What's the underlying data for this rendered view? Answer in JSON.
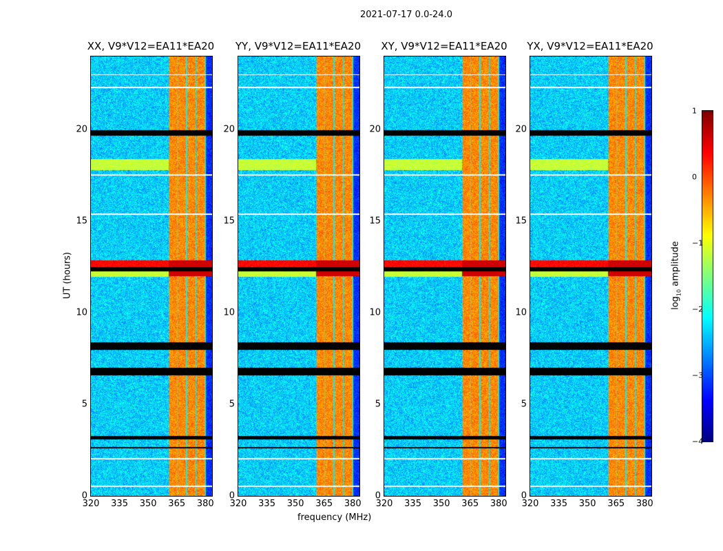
{
  "chart_data": {
    "type": "heatmap",
    "title": "2021-07-17 0.0-24.0",
    "xlabel": "frequency (MHz)",
    "ylabel": "UT (hours)",
    "xlim": [
      320,
      383.5
    ],
    "ylim": [
      0,
      24
    ],
    "xticks": [
      "320",
      "335",
      "350",
      "365",
      "380"
    ],
    "yticks": [
      "0",
      "5",
      "10",
      "15",
      "20"
    ],
    "panels": [
      {
        "title": "XX, V9*V12=EA11*EA20"
      },
      {
        "title": "YY, V9*V12=EA11*EA20"
      },
      {
        "title": "XY, V9*V12=EA11*EA20"
      },
      {
        "title": "YX, V9*V12=EA11*EA20"
      }
    ],
    "colorbar": {
      "label": "log10 amplitude",
      "label_base": "log",
      "label_sub": "10",
      "label_rest": " amplitude",
      "range": [
        -4,
        1
      ],
      "ticks": [
        "1",
        "0",
        "−1",
        "−2",
        "−3",
        "−4"
      ],
      "colormap": "jet"
    },
    "features": {
      "background_log_amp": -2.8,
      "strong_band_mhz": [
        360.5,
        380
      ],
      "strong_band_log_amp": -0.6,
      "flagged_black_ut": [
        [
          19.7,
          20.0
        ],
        [
          12.3,
          12.5
        ],
        [
          8.0,
          8.4
        ],
        [
          6.6,
          7.0
        ],
        [
          3.1,
          3.3
        ],
        [
          2.6,
          2.7
        ]
      ],
      "gap_white_ut": [
        [
          23.0,
          23.05
        ],
        [
          22.3,
          22.35
        ],
        [
          17.5,
          17.6
        ],
        [
          15.35,
          15.45
        ],
        [
          2.0,
          2.1
        ],
        [
          0.5,
          0.6
        ]
      ],
      "bright_ut": [
        [
          12.0,
          12.9
        ],
        [
          17.8,
          18.4
        ]
      ]
    }
  }
}
